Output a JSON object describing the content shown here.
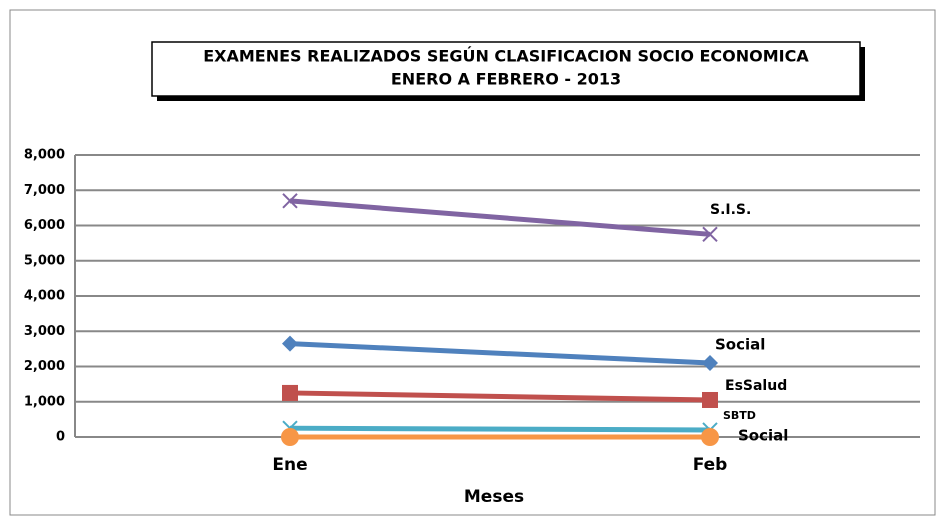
{
  "chart_data": {
    "type": "line",
    "title": "EXAMENES REALIZADOS SEGÚN CLASIFICACION SOCIO ECONOMICA",
    "subtitle": "ENERO  A  FEBRERO - 2013",
    "x_label": "Meses",
    "categories": [
      "Ene",
      "Feb"
    ],
    "series": [
      {
        "name": "S.I.S.",
        "color": "#8064a2",
        "marker": "x",
        "values": [
          6700,
          5750
        ]
      },
      {
        "name": "Social",
        "color": "#4f81bd",
        "marker": "diamond",
        "values": [
          2650,
          2100
        ]
      },
      {
        "name": "EsSalud",
        "color": "#c0504d",
        "marker": "square",
        "values": [
          1250,
          1050
        ]
      },
      {
        "name": "SBTD",
        "color": "#4bacc6",
        "marker": "x",
        "values": [
          250,
          200
        ]
      },
      {
        "name": "Social",
        "color": "#f79646",
        "marker": "circle",
        "values": [
          0,
          0
        ]
      }
    ],
    "ylim": [
      0,
      8000
    ],
    "yticks": [
      0,
      {
        "value": 1000,
        "label": "1,000"
      },
      {
        "value": 2000,
        "label": "2,000"
      },
      {
        "value": 3000,
        "label": "3,000"
      },
      {
        "value": 4000,
        "label": "4,000"
      },
      {
        "value": 5000,
        "label": "5,000"
      },
      {
        "value": 6000,
        "label": "6,000"
      },
      {
        "value": 7000,
        "label": "7,000"
      },
      {
        "value": 8000,
        "label": "8,000"
      }
    ],
    "grid": true
  }
}
